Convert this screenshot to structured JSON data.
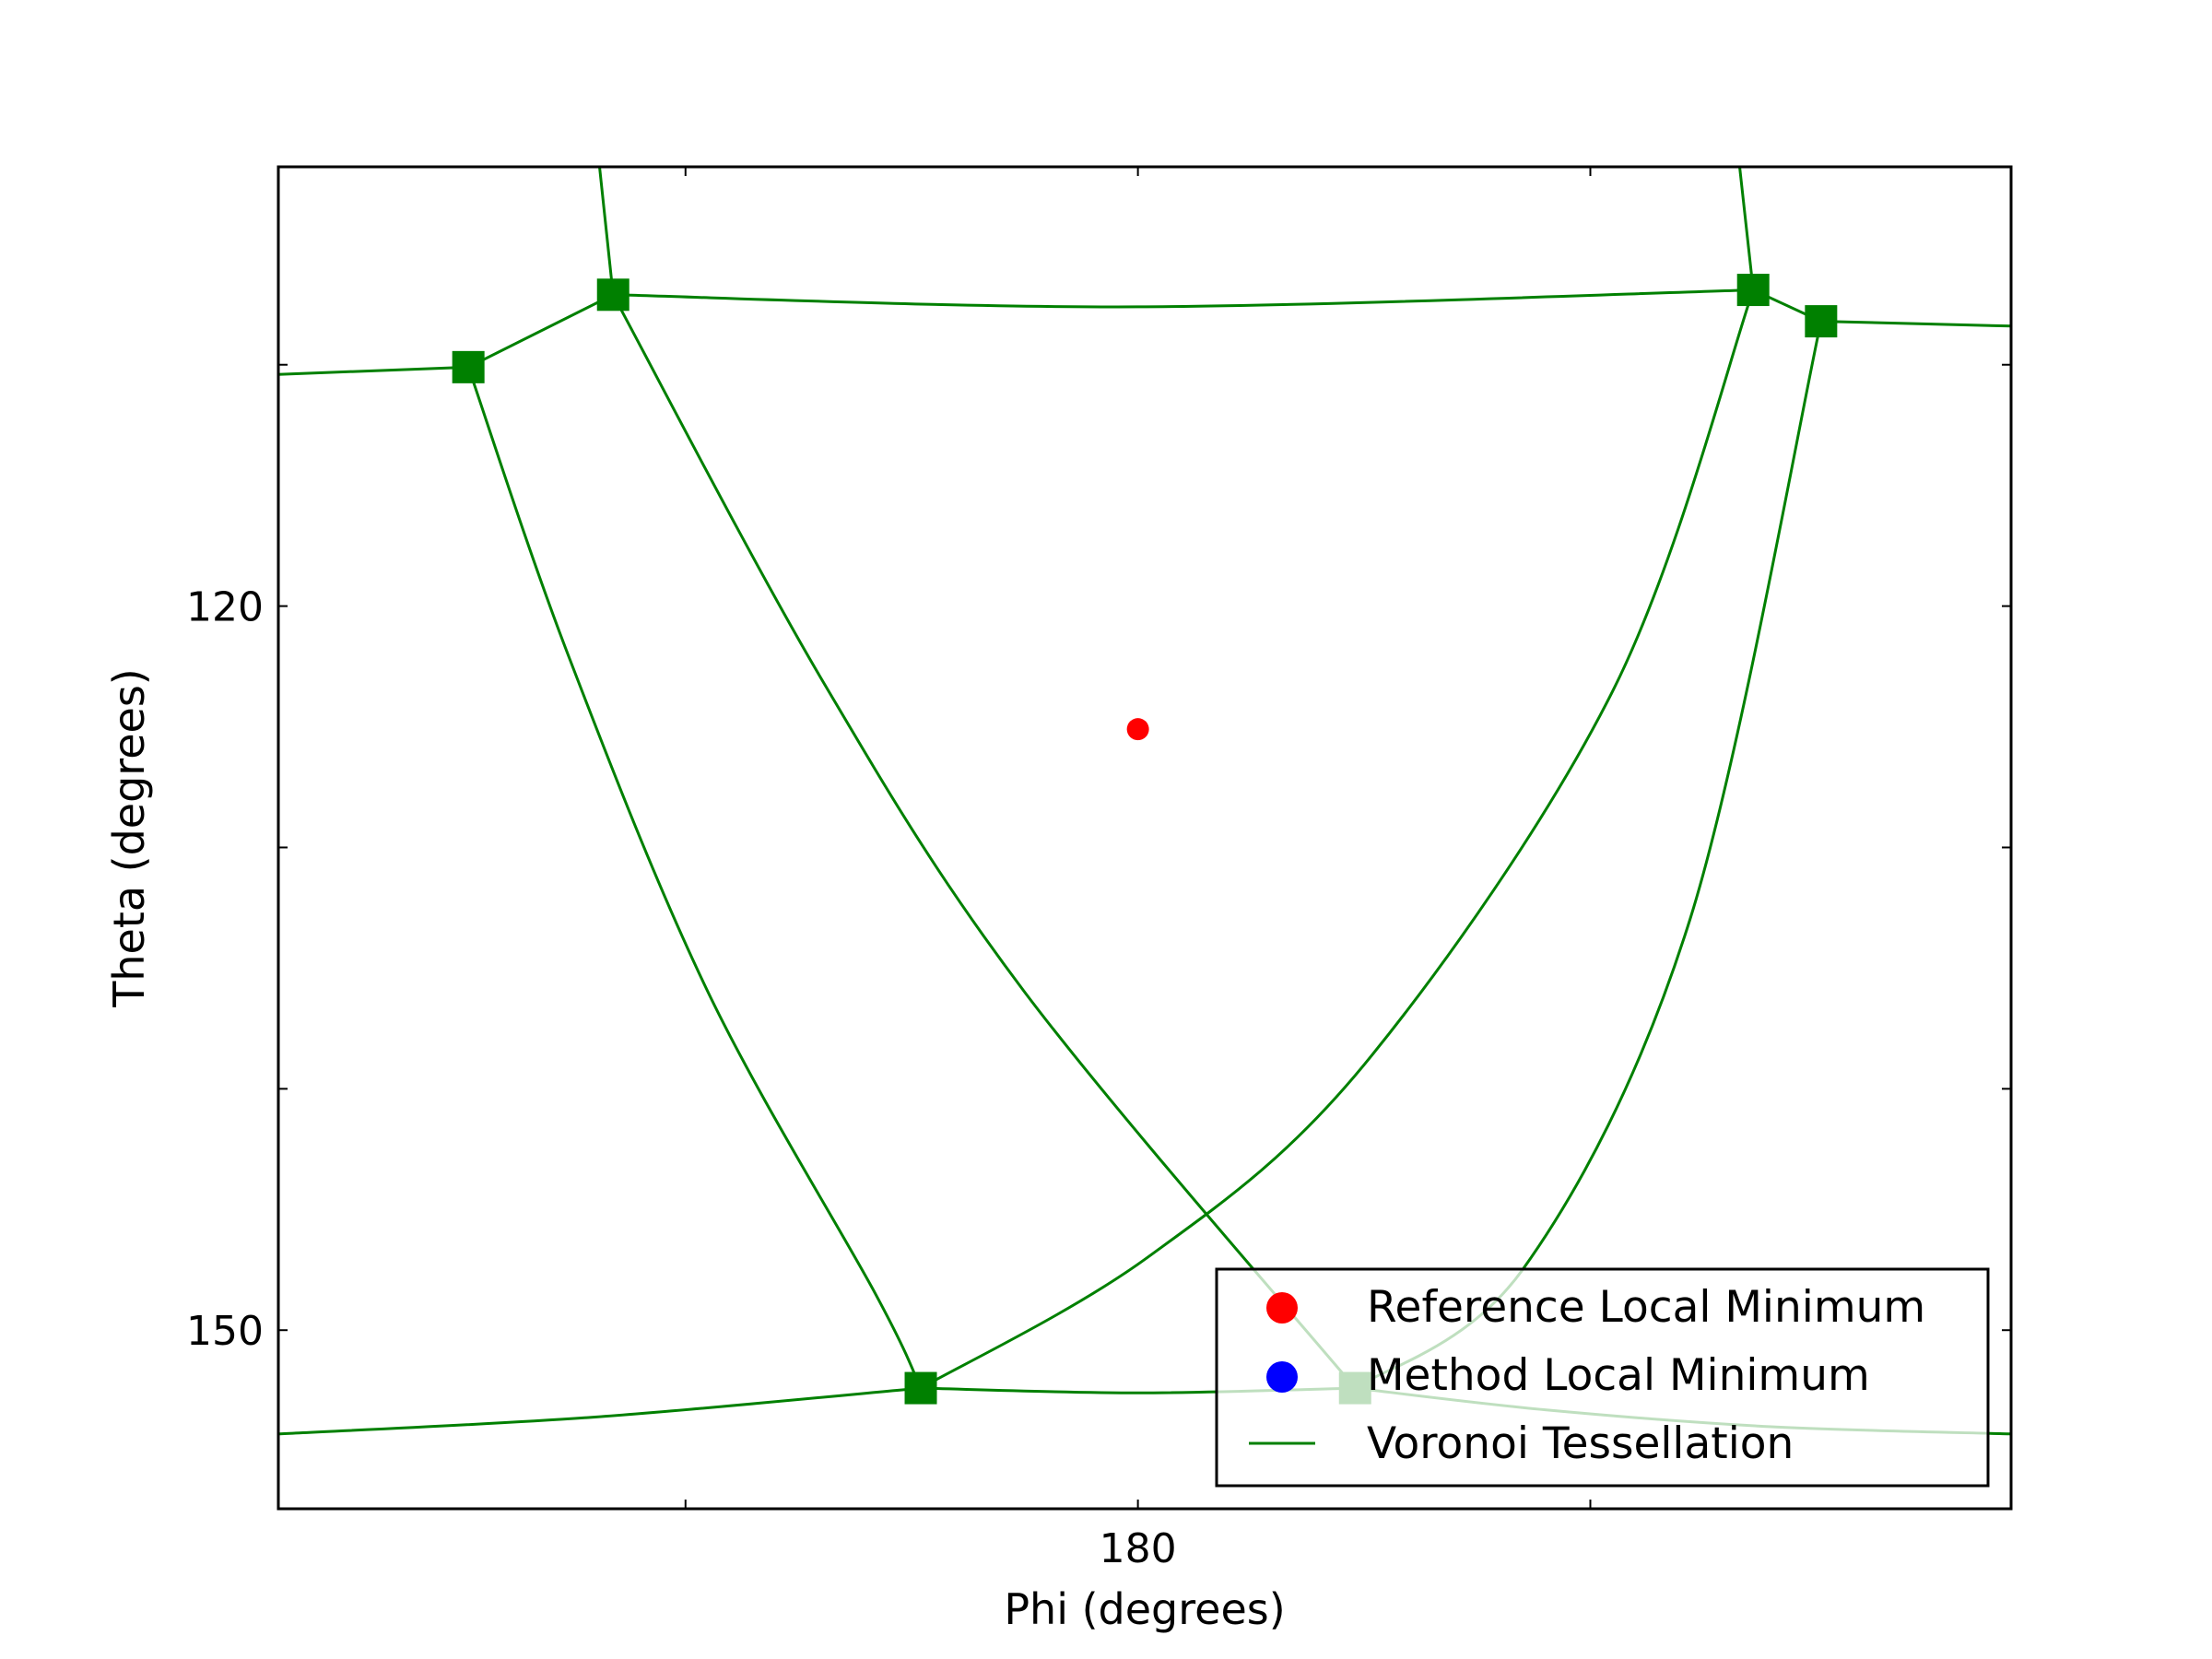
{
  "chart_data": {
    "type": "scatter",
    "xlabel": "Phi (degrees)",
    "ylabel": "Theta (degrees)",
    "xlim": [
      161,
      199.3
    ],
    "ylim": [
      157.4,
      101.8
    ],
    "y_inverted": true,
    "x_ticks": [
      170,
      180,
      190
    ],
    "x_tick_labels": [
      "",
      "180",
      ""
    ],
    "y_ticks": [
      110,
      120,
      130,
      140,
      150
    ],
    "y_tick_labels": [
      "",
      "120",
      "",
      "",
      "150"
    ],
    "grid": false,
    "legend_position": "lower-right",
    "legend": [
      {
        "label": "Reference Local Minimum",
        "marker": "circle",
        "color": "#ff0000"
      },
      {
        "label": "Method Local Minimum",
        "marker": "circle",
        "color": "#0000ff"
      },
      {
        "label": "Voronoi Tessellation",
        "marker": "line",
        "color": "#008000"
      }
    ],
    "reference_minimum": {
      "x": 180.0,
      "y": 125.1,
      "color": "#ff0000"
    },
    "voronoi_vertices": [
      {
        "x": 165.2,
        "y": 110.1
      },
      {
        "x": 168.4,
        "y": 107.1
      },
      {
        "x": 175.2,
        "y": 152.4
      },
      {
        "x": 184.8,
        "y": 152.4
      },
      {
        "x": 193.6,
        "y": 106.9
      },
      {
        "x": 195.1,
        "y": 108.2
      }
    ],
    "voronoi_edges": [
      {
        "points": [
          [
            161.0,
            110.4
          ],
          [
            165.2,
            110.1
          ]
        ]
      },
      {
        "points": [
          [
            165.2,
            110.1
          ],
          [
            168.4,
            107.1
          ]
        ]
      },
      {
        "points": [
          [
            168.4,
            107.1
          ],
          [
            180.0,
            107.6
          ],
          [
            193.6,
            106.9
          ]
        ]
      },
      {
        "points": [
          [
            193.6,
            106.9
          ],
          [
            195.1,
            108.2
          ]
        ]
      },
      {
        "points": [
          [
            195.1,
            108.2
          ],
          [
            199.3,
            108.4
          ]
        ]
      },
      {
        "points": [
          [
            168.4,
            107.1
          ],
          [
            168.1,
            101.8
          ]
        ]
      },
      {
        "points": [
          [
            193.6,
            106.9
          ],
          [
            193.3,
            101.8
          ]
        ]
      },
      {
        "points": [
          [
            165.2,
            110.1
          ],
          [
            167.4,
            122.0
          ],
          [
            170.5,
            136.0
          ],
          [
            174.2,
            148.5
          ],
          [
            175.2,
            152.4
          ]
        ]
      },
      {
        "points": [
          [
            168.4,
            107.1
          ],
          [
            173.0,
            123.0
          ],
          [
            177.5,
            136.0
          ],
          [
            184.8,
            152.4
          ]
        ]
      },
      {
        "points": [
          [
            175.2,
            152.4
          ],
          [
            180.2,
            147.0
          ],
          [
            185.0,
            139.0
          ],
          [
            190.5,
            123.5
          ],
          [
            193.6,
            106.9
          ]
        ]
      },
      {
        "points": [
          [
            184.8,
            152.4
          ],
          [
            188.5,
            147.5
          ],
          [
            192.2,
            133.0
          ],
          [
            195.1,
            108.2
          ]
        ]
      },
      {
        "points": [
          [
            161.0,
            154.3
          ],
          [
            168.0,
            153.6
          ],
          [
            175.2,
            152.4
          ]
        ]
      },
      {
        "points": [
          [
            175.2,
            152.4
          ],
          [
            180.0,
            152.6
          ],
          [
            184.8,
            152.4
          ]
        ]
      },
      {
        "points": [
          [
            184.8,
            152.4
          ],
          [
            189.0,
            153.3
          ],
          [
            194.0,
            154.0
          ],
          [
            199.3,
            154.3
          ]
        ]
      }
    ],
    "colors": {
      "edge": "#008000",
      "vertex": "#008000",
      "legend_frame": "#000000",
      "legend_fill": "#ffffff"
    }
  }
}
